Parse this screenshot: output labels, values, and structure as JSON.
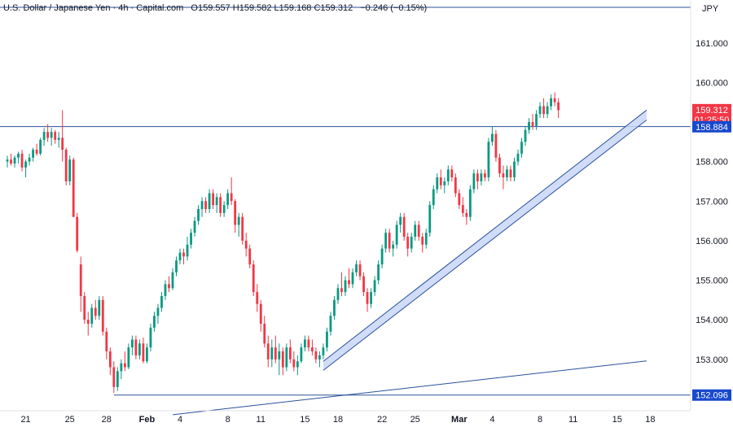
{
  "header": {
    "title": "U.S. Dollar / Japanese Yen · 4h · Capital.com",
    "ohlc": "O159.557  H159.582  L159.168  C159.312",
    "change": "−0.246 (−0.15%)"
  },
  "currency_label": "JPY",
  "price_tags": {
    "last_price": "159.312",
    "countdown": "01:25:50",
    "resistance": "158.884",
    "support": "152.096"
  },
  "colors": {
    "up": "#089981",
    "down": "#f23645",
    "line": "#2a5099",
    "channel_fill": "#c9d6f7",
    "tag_blue": "#1848cc",
    "tag_red": "#f23645",
    "header_line": "#2a5099"
  },
  "chart_data": {
    "type": "candlestick",
    "title": "U.S. Dollar / Japanese Yen · 4h · Capital.com",
    "ylim": [
      151.7,
      161.9
    ],
    "yticks": [
      153,
      154,
      155,
      156,
      157,
      158,
      159,
      160,
      161
    ],
    "ytick_labels": [
      "153.000",
      "154.000",
      "155.000",
      "156.000",
      "157.000",
      "158.000",
      "159.000",
      "160.000",
      "161.000"
    ],
    "xlim": [
      -2,
      186
    ],
    "xticks": [
      {
        "label": "21",
        "x": 5,
        "bold": false
      },
      {
        "label": "25",
        "x": 17,
        "bold": false
      },
      {
        "label": "28",
        "x": 27,
        "bold": false
      },
      {
        "label": "Feb",
        "x": 38,
        "bold": true
      },
      {
        "label": "4",
        "x": 47,
        "bold": false
      },
      {
        "label": "8",
        "x": 60,
        "bold": false
      },
      {
        "label": "11",
        "x": 69,
        "bold": false
      },
      {
        "label": "15",
        "x": 81,
        "bold": false
      },
      {
        "label": "18",
        "x": 90,
        "bold": false
      },
      {
        "label": "22",
        "x": 102,
        "bold": false
      },
      {
        "label": "25",
        "x": 111,
        "bold": false
      },
      {
        "label": "Mar",
        "x": 123,
        "bold": true
      },
      {
        "label": "4",
        "x": 132,
        "bold": false
      },
      {
        "label": "8",
        "x": 145,
        "bold": false
      },
      {
        "label": "11",
        "x": 154,
        "bold": false
      },
      {
        "label": "15",
        "x": 166,
        "bold": false
      },
      {
        "label": "18",
        "x": 175,
        "bold": false
      }
    ],
    "horizontal_levels": [
      158.884,
      152.096
    ],
    "lines": [
      {
        "name": "lower-trendline",
        "x1": 45,
        "y1": 151.6,
        "x2": 174,
        "y2": 152.96
      },
      {
        "name": "rising-channel-lower",
        "x1": 86,
        "y1": 152.72,
        "x2": 174,
        "y2": 159.05
      },
      {
        "name": "rising-channel-upper",
        "x1": 86,
        "y1": 152.95,
        "x2": 174,
        "y2": 159.3
      }
    ],
    "candles": [
      [
        158.0,
        158.15,
        157.85,
        158.05
      ],
      [
        158.05,
        158.2,
        157.9,
        157.95
      ],
      [
        157.95,
        158.15,
        157.85,
        158.1
      ],
      [
        158.1,
        158.25,
        157.95,
        158.2
      ],
      [
        158.2,
        158.3,
        157.75,
        157.85
      ],
      [
        157.85,
        158.05,
        157.6,
        158.0
      ],
      [
        158.0,
        158.2,
        157.9,
        158.1
      ],
      [
        158.1,
        158.35,
        158.0,
        158.3
      ],
      [
        158.3,
        158.45,
        158.15,
        158.2
      ],
      [
        158.2,
        158.6,
        158.15,
        158.55
      ],
      [
        158.55,
        158.85,
        158.4,
        158.75
      ],
      [
        158.75,
        158.95,
        158.5,
        158.6
      ],
      [
        158.6,
        158.85,
        158.4,
        158.75
      ],
      [
        158.75,
        158.8,
        158.45,
        158.55
      ],
      [
        158.55,
        158.75,
        158.35,
        158.6
      ],
      [
        158.6,
        159.3,
        158.0,
        158.3
      ],
      [
        158.3,
        158.35,
        157.4,
        157.5
      ],
      [
        157.5,
        158.15,
        157.4,
        158.05
      ],
      [
        158.05,
        158.1,
        156.6,
        156.6
      ],
      [
        156.6,
        156.7,
        155.7,
        155.75
      ],
      [
        155.4,
        155.6,
        154.2,
        154.6
      ],
      [
        154.6,
        154.7,
        153.9,
        154.0
      ],
      [
        154.0,
        154.2,
        153.6,
        153.9
      ],
      [
        153.9,
        154.4,
        153.8,
        154.3
      ],
      [
        154.3,
        154.5,
        154.0,
        154.1
      ],
      [
        154.1,
        154.6,
        154.0,
        154.5
      ],
      [
        154.5,
        154.6,
        153.6,
        153.7
      ],
      [
        153.7,
        153.8,
        153.0,
        153.2
      ],
      [
        153.2,
        153.3,
        152.6,
        152.8
      ],
      [
        152.8,
        152.95,
        152.15,
        152.3
      ],
      [
        152.3,
        152.8,
        152.2,
        152.7
      ],
      [
        152.7,
        153.0,
        152.5,
        152.9
      ],
      [
        152.9,
        153.2,
        152.7,
        152.8
      ],
      [
        152.8,
        153.4,
        152.75,
        153.3
      ],
      [
        153.3,
        153.6,
        153.1,
        153.5
      ],
      [
        153.5,
        153.6,
        153.0,
        153.1
      ],
      [
        153.1,
        153.5,
        153.0,
        153.4
      ],
      [
        153.4,
        153.55,
        152.9,
        152.95
      ],
      [
        152.95,
        153.4,
        152.9,
        153.3
      ],
      [
        153.3,
        153.9,
        153.2,
        153.8
      ],
      [
        153.8,
        154.2,
        153.7,
        154.1
      ],
      [
        154.1,
        154.4,
        153.9,
        154.3
      ],
      [
        154.3,
        154.7,
        154.2,
        154.6
      ],
      [
        154.6,
        155.0,
        154.5,
        154.9
      ],
      [
        154.9,
        155.1,
        154.7,
        154.8
      ],
      [
        154.8,
        155.3,
        154.75,
        155.2
      ],
      [
        155.2,
        155.6,
        155.1,
        155.5
      ],
      [
        155.5,
        155.8,
        155.4,
        155.7
      ],
      [
        155.7,
        155.8,
        155.4,
        155.6
      ],
      [
        155.6,
        156.1,
        155.5,
        155.9
      ],
      [
        155.9,
        156.3,
        155.8,
        156.2
      ],
      [
        156.2,
        156.6,
        156.1,
        156.5
      ],
      [
        156.5,
        156.9,
        156.4,
        156.8
      ],
      [
        156.8,
        157.1,
        156.6,
        157.0
      ],
      [
        157.0,
        157.1,
        156.7,
        156.8
      ],
      [
        156.8,
        157.3,
        156.7,
        157.2
      ],
      [
        157.2,
        157.3,
        156.8,
        156.9
      ],
      [
        156.9,
        157.2,
        156.7,
        157.1
      ],
      [
        157.1,
        157.2,
        156.6,
        156.7
      ],
      [
        156.7,
        157.0,
        156.6,
        156.9
      ],
      [
        156.9,
        157.3,
        156.8,
        157.2
      ],
      [
        157.2,
        157.6,
        156.9,
        157.0
      ],
      [
        157.0,
        157.05,
        156.2,
        156.4
      ],
      [
        156.4,
        156.7,
        156.1,
        156.6
      ],
      [
        156.6,
        156.7,
        155.9,
        156.0
      ],
      [
        156.0,
        156.2,
        155.6,
        155.8
      ],
      [
        155.8,
        155.9,
        155.3,
        155.4
      ],
      [
        155.4,
        155.5,
        154.6,
        154.7
      ],
      [
        154.7,
        154.9,
        154.2,
        154.4
      ],
      [
        154.4,
        154.5,
        153.7,
        153.9
      ],
      [
        153.9,
        154.1,
        153.3,
        153.4
      ],
      [
        153.4,
        153.6,
        152.8,
        153.0
      ],
      [
        153.0,
        153.5,
        152.8,
        153.3
      ],
      [
        153.3,
        153.6,
        152.9,
        153.0
      ],
      [
        153.0,
        153.4,
        152.6,
        153.2
      ],
      [
        153.2,
        153.3,
        152.6,
        152.8
      ],
      [
        152.8,
        153.4,
        152.7,
        153.3
      ],
      [
        153.3,
        153.5,
        152.9,
        153.0
      ],
      [
        153.0,
        153.2,
        152.7,
        152.8
      ],
      [
        152.8,
        153.1,
        152.6,
        152.95
      ],
      [
        152.95,
        153.4,
        152.9,
        153.3
      ],
      [
        153.3,
        153.6,
        153.2,
        153.5
      ],
      [
        153.5,
        153.6,
        153.2,
        153.3
      ],
      [
        153.3,
        153.5,
        153.1,
        153.2
      ],
      [
        153.2,
        153.3,
        152.9,
        153.0
      ],
      [
        153.0,
        153.2,
        152.8,
        153.1
      ],
      [
        153.1,
        153.4,
        153.0,
        153.3
      ],
      [
        153.3,
        153.8,
        153.2,
        153.7
      ],
      [
        153.7,
        154.2,
        153.6,
        154.1
      ],
      [
        154.1,
        154.6,
        154.0,
        154.5
      ],
      [
        154.5,
        154.9,
        154.4,
        154.8
      ],
      [
        154.8,
        155.2,
        154.6,
        154.7
      ],
      [
        154.7,
        155.1,
        154.6,
        155.0
      ],
      [
        155.0,
        155.3,
        154.8,
        154.9
      ],
      [
        154.9,
        155.3,
        154.8,
        155.2
      ],
      [
        155.2,
        155.5,
        155.1,
        155.4
      ],
      [
        155.4,
        155.5,
        155.0,
        155.1
      ],
      [
        155.1,
        155.2,
        154.6,
        154.7
      ],
      [
        154.7,
        154.8,
        154.2,
        154.4
      ],
      [
        154.4,
        154.8,
        154.3,
        154.7
      ],
      [
        154.7,
        155.1,
        154.6,
        155.0
      ],
      [
        155.0,
        155.5,
        154.9,
        155.4
      ],
      [
        155.4,
        155.9,
        155.3,
        155.8
      ],
      [
        155.8,
        156.3,
        155.7,
        156.2
      ],
      [
        156.2,
        156.3,
        155.7,
        155.8
      ],
      [
        155.8,
        156.0,
        155.6,
        155.9
      ],
      [
        155.9,
        156.5,
        155.8,
        156.4
      ],
      [
        156.4,
        156.7,
        156.2,
        156.6
      ],
      [
        156.6,
        156.7,
        156.0,
        156.1
      ],
      [
        156.1,
        156.2,
        155.6,
        155.8
      ],
      [
        155.8,
        156.2,
        155.7,
        156.1
      ],
      [
        156.1,
        156.5,
        156.0,
        156.4
      ],
      [
        156.4,
        156.5,
        156.0,
        156.1
      ],
      [
        156.1,
        156.2,
        155.7,
        155.9
      ],
      [
        155.9,
        156.3,
        155.8,
        156.2
      ],
      [
        156.2,
        157.0,
        156.1,
        156.9
      ],
      [
        156.9,
        157.4,
        156.8,
        157.3
      ],
      [
        157.3,
        157.7,
        157.2,
        157.6
      ],
      [
        157.6,
        157.8,
        157.3,
        157.4
      ],
      [
        157.4,
        157.6,
        157.2,
        157.5
      ],
      [
        157.5,
        157.9,
        157.4,
        157.8
      ],
      [
        157.8,
        157.9,
        157.5,
        157.6
      ],
      [
        157.6,
        157.7,
        157.1,
        157.2
      ],
      [
        157.2,
        157.3,
        156.8,
        156.9
      ],
      [
        156.9,
        157.1,
        156.6,
        156.7
      ],
      [
        156.7,
        156.8,
        156.4,
        156.6
      ],
      [
        156.6,
        157.4,
        156.5,
        157.3
      ],
      [
        157.3,
        157.8,
        157.2,
        157.7
      ],
      [
        157.7,
        157.8,
        157.3,
        157.5
      ],
      [
        157.5,
        157.8,
        157.4,
        157.7
      ],
      [
        157.7,
        157.8,
        157.5,
        157.6
      ],
      [
        157.6,
        158.6,
        157.5,
        158.5
      ],
      [
        158.5,
        158.9,
        158.4,
        158.7
      ],
      [
        158.7,
        158.8,
        158.0,
        158.1
      ],
      [
        158.1,
        158.2,
        157.6,
        157.7
      ],
      [
        157.7,
        157.9,
        157.3,
        157.6
      ],
      [
        157.6,
        157.9,
        157.5,
        157.8
      ],
      [
        157.8,
        157.9,
        157.5,
        157.6
      ],
      [
        157.6,
        158.1,
        157.5,
        158.0
      ],
      [
        158.0,
        158.3,
        157.9,
        158.2
      ],
      [
        158.2,
        158.6,
        158.1,
        158.5
      ],
      [
        158.5,
        158.9,
        158.4,
        158.8
      ],
      [
        158.8,
        159.1,
        158.7,
        159.0
      ],
      [
        159.0,
        159.2,
        158.8,
        158.9
      ],
      [
        158.9,
        159.3,
        158.8,
        159.2
      ],
      [
        159.2,
        159.5,
        159.1,
        159.4
      ],
      [
        159.4,
        159.6,
        159.1,
        159.2
      ],
      [
        159.2,
        159.5,
        159.1,
        159.4
      ],
      [
        159.4,
        159.7,
        159.3,
        159.6
      ],
      [
        159.6,
        159.75,
        159.4,
        159.5
      ],
      [
        159.5,
        159.6,
        159.1,
        159.3
      ]
    ]
  }
}
